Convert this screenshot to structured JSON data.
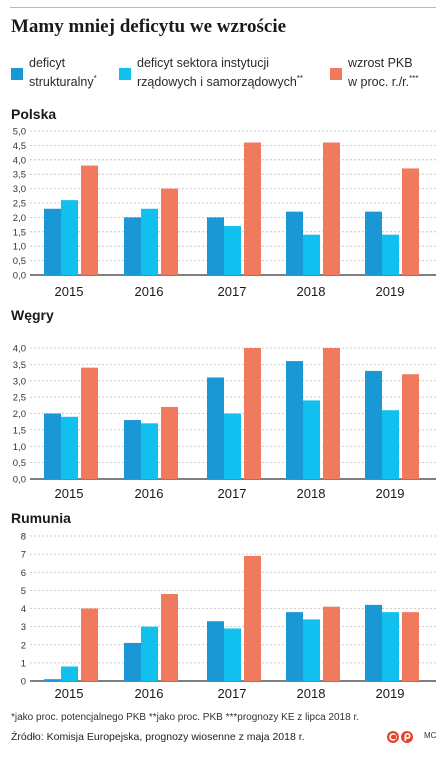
{
  "title": "Mamy mniej deficytu we wzroście",
  "colors": {
    "structural": "#1a98d5",
    "government": "#12c0ef",
    "gdp": "#f07a5d",
    "grid": "#bdbdbd",
    "axis": "#333333"
  },
  "legend": [
    {
      "lines": [
        "deficyt",
        "strukturalny"
      ],
      "mark": "*",
      "color_key": "structural"
    },
    {
      "lines": [
        "deficyt sektora instytucji",
        "rządowych i samorządowych"
      ],
      "mark": "**",
      "color_key": "government"
    },
    {
      "lines": [
        "wzrost PKB",
        "w proc. r./r."
      ],
      "mark": "***",
      "color_key": "gdp"
    }
  ],
  "footnotes": {
    "n1": "*jako proc. potencjalnego PKB",
    "n2": "**jako proc. PKB",
    "n3": "***prognozy KE z lipca 2018 r."
  },
  "source": "Źródło: Komisja Europejska, prognozy wiosenne z maja 2018 r.",
  "credit": "MC",
  "chart_data": [
    {
      "type": "bar",
      "title": "Polska",
      "categories": [
        "2015",
        "2016",
        "2017",
        "2018",
        "2019"
      ],
      "ylim": [
        0,
        5
      ],
      "yticks": [
        "0,0",
        "0,5",
        "1,0",
        "1,5",
        "2,0",
        "2,5",
        "3,0",
        "3,5",
        "4,0",
        "4,5",
        "5,0"
      ],
      "series": [
        {
          "name": "deficyt strukturalny",
          "values": [
            2.3,
            2.0,
            2.0,
            2.2,
            2.2
          ]
        },
        {
          "name": "deficyt sektora instytucji rządowych i samorządowych",
          "values": [
            2.6,
            2.3,
            1.7,
            1.4,
            1.4
          ]
        },
        {
          "name": "wzrost PKB w proc. r./r.",
          "values": [
            3.8,
            3.0,
            4.6,
            4.6,
            3.7
          ]
        }
      ]
    },
    {
      "type": "bar",
      "title": "Węgry",
      "categories": [
        "2015",
        "2016",
        "2017",
        "2018",
        "2019"
      ],
      "ylim": [
        0,
        4
      ],
      "yticks": [
        "0,0",
        "0,5",
        "1,0",
        "1,5",
        "2,0",
        "2,5",
        "3,0",
        "3,5",
        "4,0"
      ],
      "series": [
        {
          "name": "deficyt strukturalny",
          "values": [
            2.0,
            1.8,
            3.1,
            3.6,
            3.3
          ]
        },
        {
          "name": "deficyt sektora instytucji rządowych i samorządowych",
          "values": [
            1.9,
            1.7,
            2.0,
            2.4,
            2.1
          ]
        },
        {
          "name": "wzrost PKB w proc. r./r.",
          "values": [
            3.4,
            2.2,
            4.0,
            4.0,
            3.2
          ]
        }
      ]
    },
    {
      "type": "bar",
      "title": "Rumunia",
      "categories": [
        "2015",
        "2016",
        "2017",
        "2018",
        "2019"
      ],
      "ylim": [
        0,
        8
      ],
      "yticks": [
        "0",
        "1",
        "2",
        "3",
        "4",
        "5",
        "6",
        "7",
        "8"
      ],
      "series": [
        {
          "name": "deficyt strukturalny",
          "values": [
            0.1,
            2.1,
            3.3,
            3.8,
            4.2
          ]
        },
        {
          "name": "deficyt sektora instytucji rządowych i samorządowych",
          "values": [
            0.8,
            3.0,
            2.9,
            3.4,
            3.8
          ]
        },
        {
          "name": "wzrost PKB w proc. r./r.",
          "values": [
            4.0,
            4.8,
            6.9,
            4.1,
            3.8
          ]
        }
      ]
    }
  ]
}
